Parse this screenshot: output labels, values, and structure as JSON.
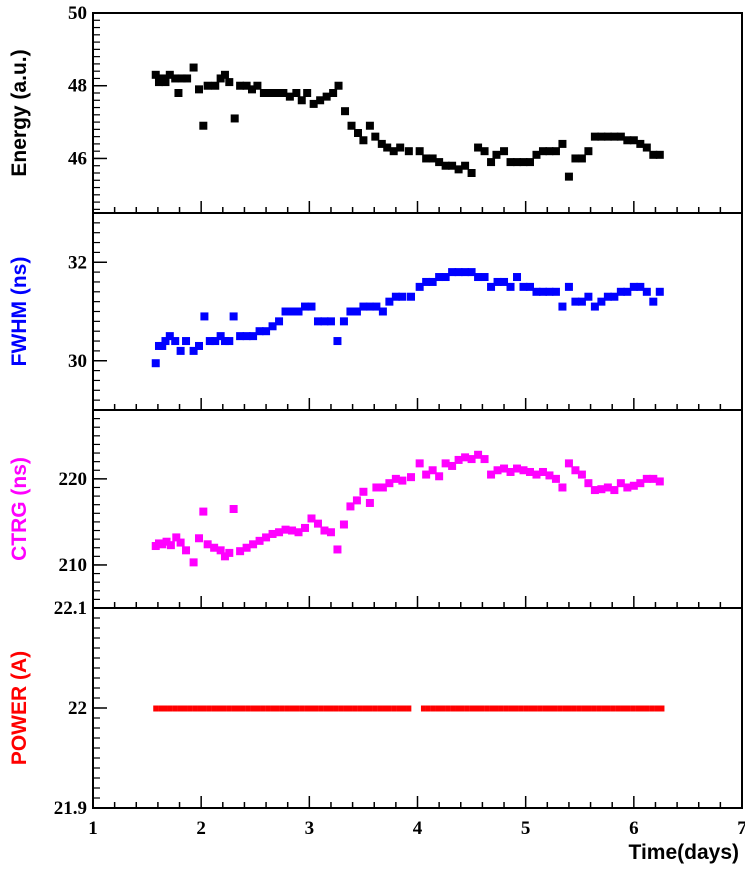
{
  "chart_data": {
    "type": "scatter",
    "x_axis": {
      "label": "Time(days)",
      "range": [
        1,
        7
      ],
      "ticks": [
        1,
        2,
        3,
        4,
        5,
        6,
        7
      ],
      "tick_labels": [
        "1",
        "2",
        "3",
        "4",
        "5",
        "6",
        "7"
      ]
    },
    "panels": [
      {
        "id": "energy",
        "ylabel": "Energy (a.u.)",
        "color": "#000000",
        "ylim": [
          44.5,
          50
        ],
        "yticks": [
          46,
          48,
          50
        ],
        "ytick_labels": [
          "46",
          "48",
          "50"
        ],
        "series": [
          {
            "x": [
              1.58,
              1.61,
              1.64,
              1.67,
              1.71,
              1.76,
              1.79,
              1.82,
              1.87,
              1.93,
              1.98,
              2.02,
              2.06,
              2.13,
              2.18,
              2.22,
              2.26,
              2.31,
              2.36,
              2.42,
              2.47,
              2.52,
              2.58,
              2.64,
              2.7,
              2.76,
              2.82,
              2.88,
              2.93,
              2.98,
              3.04,
              3.1,
              3.16,
              3.22,
              3.27,
              3.33,
              3.39,
              3.45,
              3.5,
              3.56,
              3.61,
              3.67,
              3.72,
              3.78,
              3.84,
              3.92,
              4.02,
              4.08,
              4.14,
              4.2,
              4.26,
              4.32,
              4.38,
              4.44,
              4.5,
              4.56,
              4.62,
              4.68,
              4.73,
              4.8,
              4.86,
              4.92,
              4.98,
              5.04,
              5.1,
              5.16,
              5.22,
              5.28,
              5.34,
              5.4,
              5.46,
              5.52,
              5.58,
              5.64,
              5.7,
              5.76,
              5.82,
              5.88,
              5.94,
              6.0,
              6.06,
              6.12,
              6.18,
              6.24
            ],
            "y": [
              48.3,
              48.1,
              48.2,
              48.1,
              48.3,
              48.2,
              47.8,
              48.2,
              48.2,
              48.5,
              47.9,
              46.9,
              48.0,
              48.0,
              48.2,
              48.3,
              48.1,
              47.1,
              48.0,
              48.0,
              47.9,
              48.0,
              47.8,
              47.8,
              47.8,
              47.8,
              47.7,
              47.8,
              47.6,
              47.8,
              47.5,
              47.6,
              47.7,
              47.8,
              48.0,
              47.3,
              46.9,
              46.7,
              46.5,
              46.9,
              46.6,
              46.4,
              46.3,
              46.2,
              46.3,
              46.2,
              46.2,
              46.0,
              46.0,
              45.9,
              45.8,
              45.8,
              45.7,
              45.8,
              45.6,
              46.3,
              46.2,
              45.9,
              46.1,
              46.2,
              45.9,
              45.9,
              45.9,
              45.9,
              46.1,
              46.2,
              46.2,
              46.2,
              46.4,
              45.5,
              46.0,
              46.0,
              46.2,
              46.6,
              46.6,
              46.6,
              46.6,
              46.6,
              46.5,
              46.5,
              46.4,
              46.3,
              46.1,
              46.1
            ]
          }
        ]
      },
      {
        "id": "fwhm",
        "ylabel": "FWHM (ns)",
        "color": "#0000ff",
        "ylim": [
          29.0,
          33.0
        ],
        "yticks": [
          30,
          32
        ],
        "ytick_labels": [
          "30",
          "32"
        ],
        "series": [
          {
            "x": [
              1.58,
              1.61,
              1.64,
              1.67,
              1.71,
              1.76,
              1.81,
              1.86,
              1.93,
              1.98,
              2.03,
              2.08,
              2.13,
              2.18,
              2.22,
              2.26,
              2.3,
              2.36,
              2.42,
              2.48,
              2.54,
              2.6,
              2.66,
              2.72,
              2.78,
              2.84,
              2.9,
              2.96,
              3.02,
              3.08,
              3.14,
              3.2,
              3.26,
              3.32,
              3.38,
              3.44,
              3.5,
              3.56,
              3.62,
              3.68,
              3.74,
              3.8,
              3.86,
              3.94,
              4.02,
              4.08,
              4.14,
              4.2,
              4.26,
              4.32,
              4.38,
              4.44,
              4.5,
              4.56,
              4.62,
              4.68,
              4.74,
              4.8,
              4.86,
              4.92,
              4.98,
              5.04,
              5.1,
              5.16,
              5.22,
              5.28,
              5.34,
              5.4,
              5.46,
              5.52,
              5.58,
              5.64,
              5.7,
              5.76,
              5.82,
              5.88,
              5.94,
              6.0,
              6.06,
              6.12,
              6.18,
              6.24
            ],
            "y": [
              29.95,
              30.3,
              30.3,
              30.4,
              30.5,
              30.4,
              30.2,
              30.4,
              30.2,
              30.3,
              30.9,
              30.4,
              30.4,
              30.5,
              30.4,
              30.4,
              30.9,
              30.5,
              30.5,
              30.5,
              30.6,
              30.6,
              30.7,
              30.8,
              31.0,
              31.0,
              31.0,
              31.1,
              31.1,
              30.8,
              30.8,
              30.8,
              30.4,
              30.8,
              31.0,
              31.0,
              31.1,
              31.1,
              31.1,
              31.0,
              31.2,
              31.3,
              31.3,
              31.3,
              31.5,
              31.6,
              31.6,
              31.7,
              31.7,
              31.8,
              31.8,
              31.8,
              31.8,
              31.7,
              31.7,
              31.5,
              31.6,
              31.6,
              31.5,
              31.7,
              31.5,
              31.5,
              31.4,
              31.4,
              31.4,
              31.4,
              31.1,
              31.5,
              31.2,
              31.2,
              31.3,
              31.1,
              31.2,
              31.3,
              31.3,
              31.4,
              31.4,
              31.5,
              31.5,
              31.4,
              31.2,
              31.4
            ]
          }
        ]
      },
      {
        "id": "ctrg",
        "ylabel": "CTRG (ns)",
        "color": "#ff00ff",
        "ylim": [
          205.0,
          228.0
        ],
        "yticks": [
          210,
          220
        ],
        "ytick_labels": [
          "210",
          "220"
        ],
        "series": [
          {
            "x": [
              1.58,
              1.61,
              1.64,
              1.68,
              1.72,
              1.77,
              1.81,
              1.86,
              1.93,
              1.98,
              2.02,
              2.06,
              2.12,
              2.18,
              2.22,
              2.26,
              2.3,
              2.36,
              2.42,
              2.48,
              2.54,
              2.6,
              2.66,
              2.72,
              2.78,
              2.84,
              2.9,
              2.96,
              3.02,
              3.08,
              3.14,
              3.2,
              3.26,
              3.32,
              3.38,
              3.44,
              3.5,
              3.56,
              3.62,
              3.68,
              3.74,
              3.8,
              3.86,
              3.94,
              4.02,
              4.08,
              4.14,
              4.2,
              4.26,
              4.32,
              4.38,
              4.44,
              4.5,
              4.56,
              4.62,
              4.68,
              4.74,
              4.8,
              4.86,
              4.92,
              4.98,
              5.04,
              5.1,
              5.16,
              5.22,
              5.28,
              5.34,
              5.4,
              5.46,
              5.52,
              5.58,
              5.64,
              5.7,
              5.76,
              5.82,
              5.88,
              5.94,
              6.0,
              6.06,
              6.12,
              6.18,
              6.24
            ],
            "y": [
              212.2,
              212.5,
              212.4,
              212.7,
              212.3,
              213.2,
              212.6,
              211.7,
              210.3,
              213.1,
              216.2,
              212.4,
              212.0,
              211.7,
              211.0,
              211.4,
              216.5,
              211.6,
              212.0,
              212.4,
              212.8,
              213.2,
              213.6,
              213.8,
              214.1,
              214.0,
              213.8,
              214.3,
              215.4,
              214.8,
              214.0,
              213.8,
              211.8,
              214.7,
              216.8,
              217.5,
              218.5,
              217.2,
              219.0,
              219.0,
              219.5,
              220.0,
              219.8,
              220.2,
              221.8,
              220.5,
              221.0,
              220.3,
              221.8,
              221.5,
              222.2,
              222.5,
              222.3,
              222.8,
              222.3,
              220.5,
              221.0,
              221.2,
              220.8,
              221.2,
              221.0,
              220.8,
              220.5,
              220.8,
              220.4,
              220.0,
              219.0,
              221.8,
              221.0,
              220.5,
              219.5,
              218.7,
              218.8,
              219.0,
              218.7,
              219.5,
              219.0,
              219.2,
              219.5,
              220.0,
              220.0,
              219.7
            ]
          }
        ]
      },
      {
        "id": "power",
        "ylabel": "POWER (A)",
        "color": "#ff0000",
        "ylim": [
          21.9,
          22.1
        ],
        "yticks": [
          21.9,
          22,
          22.1
        ],
        "ytick_labels": [
          "21.9",
          "22",
          "22.1"
        ],
        "series": [
          {
            "x_start": 1.58,
            "x_end": 6.26,
            "gap": [
              3.92,
              4.01
            ],
            "y": 22.0
          }
        ]
      }
    ]
  }
}
